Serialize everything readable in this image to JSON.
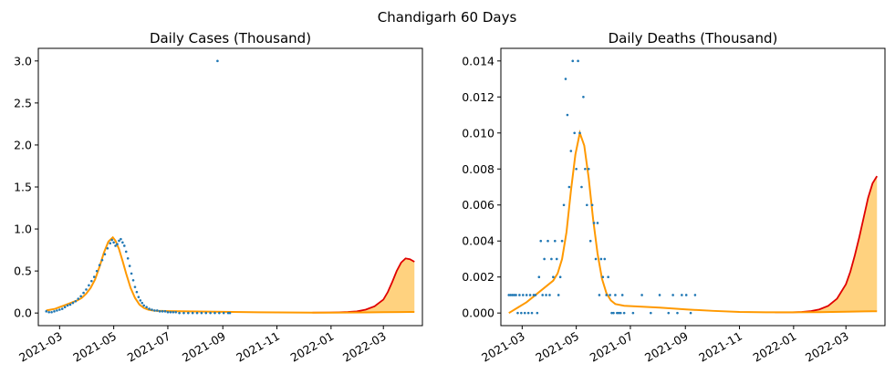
{
  "figure": {
    "suptitle": "Chandigarh 60 Days"
  },
  "colors": {
    "scatter": "#1f77b4",
    "forecast": "#e00000",
    "fit": "#ff9900",
    "band": "#ffd27f"
  },
  "chart_data": [
    {
      "type": "scatter+line",
      "title": "Daily Cases (Thousand)",
      "xlabel": "",
      "ylabel": "",
      "x_start": "2021-02-14",
      "x_range_days": [
        -9,
        424
      ],
      "ylim": [
        -0.15,
        3.15
      ],
      "y_ticks": [
        0.0,
        0.5,
        1.0,
        1.5,
        2.0,
        2.5,
        3.0
      ],
      "y_tick_labels": [
        "0.0",
        "0.5",
        "1.0",
        "1.5",
        "2.0",
        "2.5",
        "3.0"
      ],
      "x_ticks": [
        {
          "label": "2021-03",
          "day": 15
        },
        {
          "label": "2021-05",
          "day": 76
        },
        {
          "label": "2021-07",
          "day": 137
        },
        {
          "label": "2021-09",
          "day": 199
        },
        {
          "label": "2021-11",
          "day": 260
        },
        {
          "label": "2022-01",
          "day": 321
        },
        {
          "label": "2022-03",
          "day": 380
        }
      ],
      "scatter": {
        "name": "observed",
        "days": [
          0,
          3,
          6,
          9,
          12,
          15,
          18,
          21,
          24,
          27,
          30,
          33,
          36,
          39,
          42,
          45,
          48,
          51,
          54,
          57,
          60,
          63,
          66,
          69,
          72,
          74,
          76,
          78,
          80,
          82,
          84,
          86,
          88,
          90,
          92,
          94,
          96,
          98,
          100,
          102,
          104,
          106,
          108,
          110,
          113,
          116,
          119,
          122,
          125,
          128,
          131,
          134,
          137,
          140,
          143,
          146,
          150,
          155,
          160,
          165,
          170,
          175,
          180,
          185,
          190,
          195,
          200,
          205,
          207
        ],
        "values": [
          0.02,
          0.01,
          0.01,
          0.02,
          0.03,
          0.04,
          0.05,
          0.07,
          0.09,
          0.1,
          0.12,
          0.14,
          0.17,
          0.2,
          0.24,
          0.28,
          0.33,
          0.38,
          0.43,
          0.5,
          0.57,
          0.63,
          0.7,
          0.77,
          0.83,
          0.87,
          0.84,
          0.8,
          0.82,
          0.86,
          0.88,
          0.84,
          0.8,
          0.73,
          0.65,
          0.56,
          0.47,
          0.39,
          0.31,
          0.25,
          0.19,
          0.15,
          0.12,
          0.09,
          0.07,
          0.05,
          0.04,
          0.03,
          0.03,
          0.02,
          0.02,
          0.02,
          0.01,
          0.01,
          0.01,
          0.01,
          0.0,
          0.0,
          0.0,
          0.0,
          0.0,
          0.0,
          0.0,
          0.0,
          0.0,
          0.0,
          0.0,
          0.0,
          0.0
        ]
      },
      "outlier": {
        "day": 193,
        "value": 3.0
      },
      "fit": {
        "name": "fit",
        "days": [
          0,
          5,
          10,
          15,
          20,
          25,
          30,
          35,
          40,
          45,
          50,
          55,
          60,
          65,
          70,
          75,
          78,
          82,
          86,
          90,
          95,
          100,
          105,
          110,
          115,
          120,
          125,
          130,
          135,
          140,
          160,
          180,
          200,
          220,
          240,
          260,
          280,
          300,
          320,
          340,
          360,
          380,
          400,
          410,
          415
        ],
        "values": [
          0.03,
          0.04,
          0.05,
          0.07,
          0.09,
          0.11,
          0.13,
          0.15,
          0.18,
          0.23,
          0.3,
          0.4,
          0.55,
          0.72,
          0.85,
          0.9,
          0.86,
          0.76,
          0.62,
          0.47,
          0.3,
          0.18,
          0.1,
          0.06,
          0.04,
          0.03,
          0.025,
          0.025,
          0.024,
          0.023,
          0.02,
          0.017,
          0.014,
          0.011,
          0.009,
          0.007,
          0.006,
          0.005,
          0.005,
          0.006,
          0.008,
          0.01,
          0.012,
          0.013,
          0.013
        ]
      },
      "forecast": {
        "name": "forecast",
        "days": [
          300,
          320,
          330,
          340,
          350,
          360,
          370,
          380,
          385,
          390,
          395,
          400,
          405,
          410,
          415
        ],
        "values": [
          0.005,
          0.006,
          0.008,
          0.012,
          0.02,
          0.04,
          0.08,
          0.16,
          0.25,
          0.37,
          0.5,
          0.6,
          0.65,
          0.64,
          0.61
        ]
      }
    },
    {
      "type": "scatter+line",
      "title": "Daily Deaths (Thousand)",
      "xlabel": "",
      "ylabel": "",
      "x_start": "2021-02-14",
      "x_range_days": [
        -9,
        424
      ],
      "ylim": [
        -0.0007,
        0.0147
      ],
      "y_ticks": [
        0.0,
        0.002,
        0.004,
        0.006,
        0.008,
        0.01,
        0.012,
        0.014
      ],
      "y_tick_labels": [
        "0.000",
        "0.002",
        "0.004",
        "0.006",
        "0.008",
        "0.010",
        "0.012",
        "0.014"
      ],
      "x_ticks": [
        {
          "label": "2021-03",
          "day": 15
        },
        {
          "label": "2021-05",
          "day": 76
        },
        {
          "label": "2021-07",
          "day": 137
        },
        {
          "label": "2021-09",
          "day": 199
        },
        {
          "label": "2021-11",
          "day": 260
        },
        {
          "label": "2022-01",
          "day": 321
        },
        {
          "label": "2022-03",
          "day": 380
        }
      ],
      "scatter": {
        "name": "observed",
        "days": [
          0,
          2,
          4,
          6,
          8,
          10,
          12,
          14,
          16,
          18,
          20,
          22,
          24,
          26,
          28,
          30,
          32,
          34,
          36,
          38,
          40,
          42,
          44,
          46,
          48,
          50,
          52,
          54,
          56,
          58,
          60,
          62,
          64,
          66,
          68,
          70,
          72,
          74,
          76,
          78,
          80,
          82,
          84,
          86,
          88,
          90,
          92,
          94,
          96,
          98,
          100,
          102,
          104,
          106,
          108,
          110,
          112,
          114,
          116,
          118,
          120,
          122,
          124,
          126,
          128,
          130,
          140,
          150,
          160,
          170,
          180,
          185,
          190,
          195,
          200,
          205,
          210
        ],
        "values": [
          0.001,
          0.001,
          0.001,
          0.001,
          0.001,
          0,
          0.001,
          0,
          0.001,
          0,
          0.001,
          0,
          0.001,
          0,
          0.001,
          0.001,
          0,
          0.002,
          0.004,
          0.001,
          0.003,
          0.001,
          0.004,
          0.001,
          0.003,
          0.002,
          0.004,
          0.003,
          0.001,
          0.002,
          0.004,
          0.006,
          0.013,
          0.011,
          0.007,
          0.009,
          0.014,
          0.01,
          0.008,
          0.014,
          0.01,
          0.007,
          0.012,
          0.008,
          0.006,
          0.008,
          0.004,
          0.006,
          0.005,
          0.003,
          0.005,
          0.001,
          0.003,
          0.002,
          0.003,
          0.001,
          0.002,
          0.001,
          0.0,
          0.0,
          0.001,
          0.0,
          0.0,
          0.0,
          0.001,
          0.0,
          0.0,
          0.001,
          0.0,
          0.001,
          0.0,
          0.001,
          0.0,
          0.001,
          0.001,
          0.0,
          0.001
        ]
      },
      "fit": {
        "name": "fit",
        "days": [
          0,
          10,
          20,
          30,
          40,
          50,
          55,
          60,
          65,
          70,
          75,
          80,
          85,
          90,
          95,
          100,
          105,
          110,
          115,
          120,
          130,
          150,
          170,
          200,
          230,
          260,
          290,
          320,
          350,
          380,
          400,
          410,
          415
        ],
        "values": [
          0.0,
          0.0003,
          0.0006,
          0.001,
          0.0014,
          0.0018,
          0.0022,
          0.003,
          0.0045,
          0.0068,
          0.0088,
          0.01,
          0.0093,
          0.0075,
          0.0052,
          0.0033,
          0.0019,
          0.0011,
          0.0007,
          0.0005,
          0.0004,
          0.00035,
          0.0003,
          0.0002,
          0.00012,
          6e-05,
          4e-05,
          4e-05,
          5e-05,
          7e-05,
          9e-05,
          0.0001,
          0.0001
        ]
      },
      "forecast": {
        "name": "forecast",
        "days": [
          300,
          320,
          330,
          340,
          350,
          360,
          370,
          380,
          385,
          390,
          395,
          400,
          405,
          410,
          415
        ],
        "values": [
          4e-05,
          4e-05,
          6e-05,
          0.0001,
          0.0002,
          0.0004,
          0.0008,
          0.0016,
          0.0023,
          0.0032,
          0.0042,
          0.0053,
          0.0064,
          0.0072,
          0.0076
        ]
      }
    }
  ]
}
